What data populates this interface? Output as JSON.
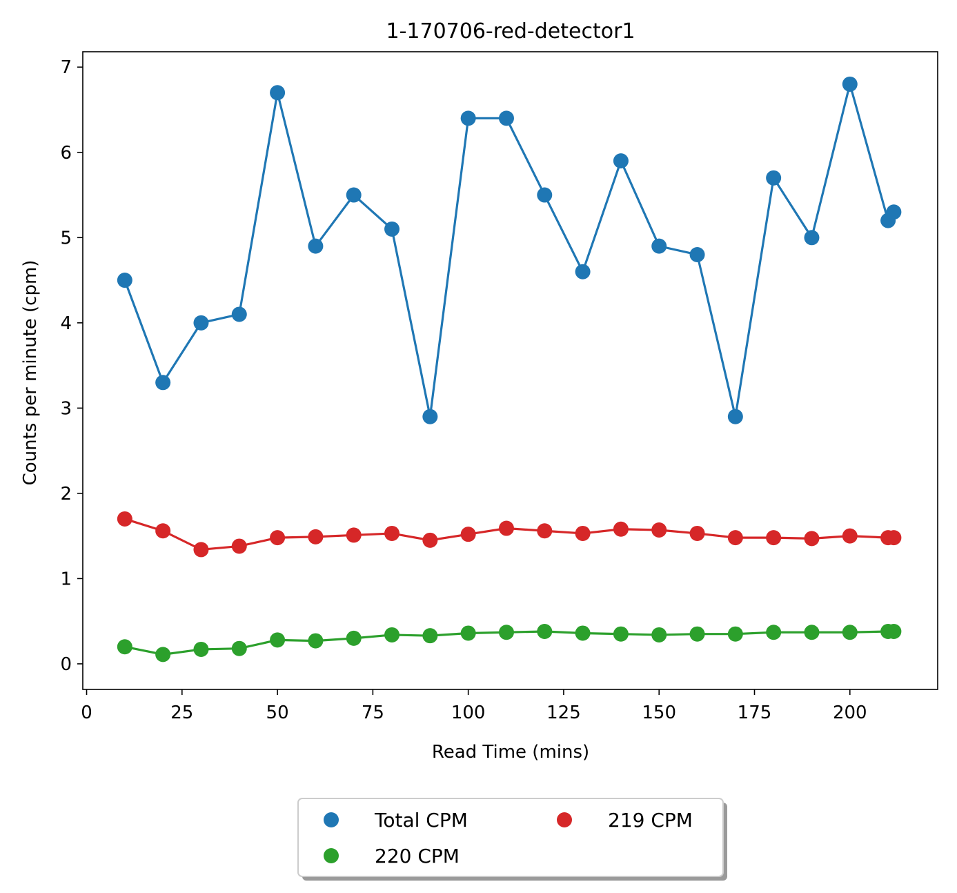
{
  "chart_data": {
    "type": "line",
    "title": "1-170706-red-detector1",
    "xlabel": "Read Time (mins)",
    "ylabel": "Counts per minute (cpm)",
    "xlim": [
      -1,
      223
    ],
    "ylim": [
      -0.3,
      7.18
    ],
    "xticks": [
      0,
      25,
      50,
      75,
      100,
      125,
      150,
      175,
      200
    ],
    "yticks": [
      0,
      1,
      2,
      3,
      4,
      5,
      6,
      7
    ],
    "grid": false,
    "legend_position": "below-center",
    "legend_columns": 2,
    "x": [
      10,
      20,
      30,
      40,
      50,
      60,
      70,
      80,
      90,
      100,
      110,
      120,
      130,
      140,
      150,
      160,
      170,
      180,
      190,
      200,
      210,
      211.5
    ],
    "series": [
      {
        "name": "Total CPM",
        "color": "#1f77b4",
        "values": [
          4.5,
          3.3,
          4.0,
          4.1,
          6.7,
          4.9,
          5.5,
          5.1,
          2.9,
          6.4,
          6.4,
          5.5,
          4.6,
          5.9,
          4.9,
          4.8,
          2.9,
          5.7,
          5.0,
          6.8,
          5.2,
          5.3
        ]
      },
      {
        "name": "219 CPM",
        "color": "#d62728",
        "values": [
          1.7,
          1.56,
          1.34,
          1.38,
          1.48,
          1.49,
          1.51,
          1.53,
          1.45,
          1.52,
          1.59,
          1.56,
          1.53,
          1.58,
          1.57,
          1.53,
          1.48,
          1.48,
          1.47,
          1.5,
          1.48,
          1.48
        ]
      },
      {
        "name": "220 CPM",
        "color": "#2ca02c",
        "values": [
          0.2,
          0.11,
          0.17,
          0.18,
          0.28,
          0.27,
          0.3,
          0.34,
          0.33,
          0.36,
          0.37,
          0.38,
          0.36,
          0.35,
          0.34,
          0.35,
          0.35,
          0.37,
          0.37,
          0.37,
          0.38,
          0.38
        ]
      }
    ],
    "legend_order": [
      "Total CPM",
      "220 CPM",
      "219 CPM"
    ]
  }
}
